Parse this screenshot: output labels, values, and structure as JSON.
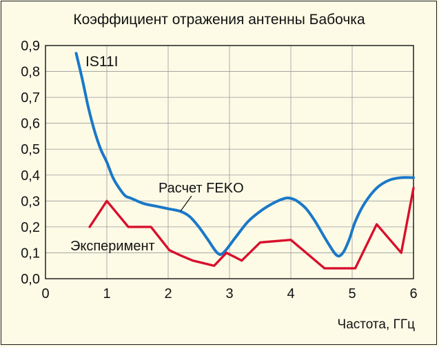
{
  "chart_data": {
    "type": "line",
    "title": "Коэффициент отражения антенны Бабочка",
    "xlabel": "Частота, ГГц",
    "ylabel": "",
    "xlim": [
      0,
      6
    ],
    "ylim": [
      0,
      0.9
    ],
    "x_ticks": [
      "0",
      "1",
      "2",
      "3",
      "4",
      "5",
      "6"
    ],
    "y_ticks": [
      "0,0",
      "0,1",
      "0,2",
      "0,3",
      "0,4",
      "0,5",
      "0,6",
      "0,7",
      "0,8",
      "0,9"
    ],
    "grid": true,
    "legend": "none",
    "annotations": {
      "s11": "IS11I",
      "feko": "Расчет FEKO",
      "experiment": "Эксперимент"
    },
    "series": [
      {
        "name": "Расчет FEKO",
        "color": "#1a78c8",
        "x": [
          0.5,
          0.6,
          0.7,
          0.8,
          0.9,
          1.0,
          1.1,
          1.2,
          1.3,
          1.4,
          1.6,
          1.8,
          2.0,
          2.2,
          2.35,
          2.5,
          2.65,
          2.8,
          2.9,
          3.1,
          3.3,
          3.5,
          3.7,
          3.9,
          4.0,
          4.1,
          4.25,
          4.4,
          4.6,
          4.75,
          4.85,
          4.95,
          5.05,
          5.2,
          5.4,
          5.6,
          5.8,
          6.0
        ],
        "y": [
          0.87,
          0.77,
          0.66,
          0.57,
          0.5,
          0.45,
          0.39,
          0.35,
          0.32,
          0.31,
          0.29,
          0.28,
          0.27,
          0.26,
          0.24,
          0.2,
          0.15,
          0.1,
          0.1,
          0.16,
          0.22,
          0.26,
          0.29,
          0.31,
          0.31,
          0.3,
          0.27,
          0.22,
          0.14,
          0.09,
          0.1,
          0.15,
          0.22,
          0.29,
          0.35,
          0.38,
          0.39,
          0.39
        ]
      },
      {
        "name": "Эксперимент",
        "color": "#d8102c",
        "x": [
          0.72,
          1.0,
          1.35,
          1.72,
          2.02,
          2.2,
          2.4,
          2.75,
          2.95,
          3.2,
          3.5,
          4.0,
          4.55,
          5.05,
          5.4,
          5.8,
          6.0
        ],
        "y": [
          0.2,
          0.3,
          0.2,
          0.2,
          0.11,
          0.09,
          0.07,
          0.05,
          0.1,
          0.07,
          0.14,
          0.15,
          0.04,
          0.04,
          0.21,
          0.1,
          0.35
        ]
      }
    ]
  }
}
